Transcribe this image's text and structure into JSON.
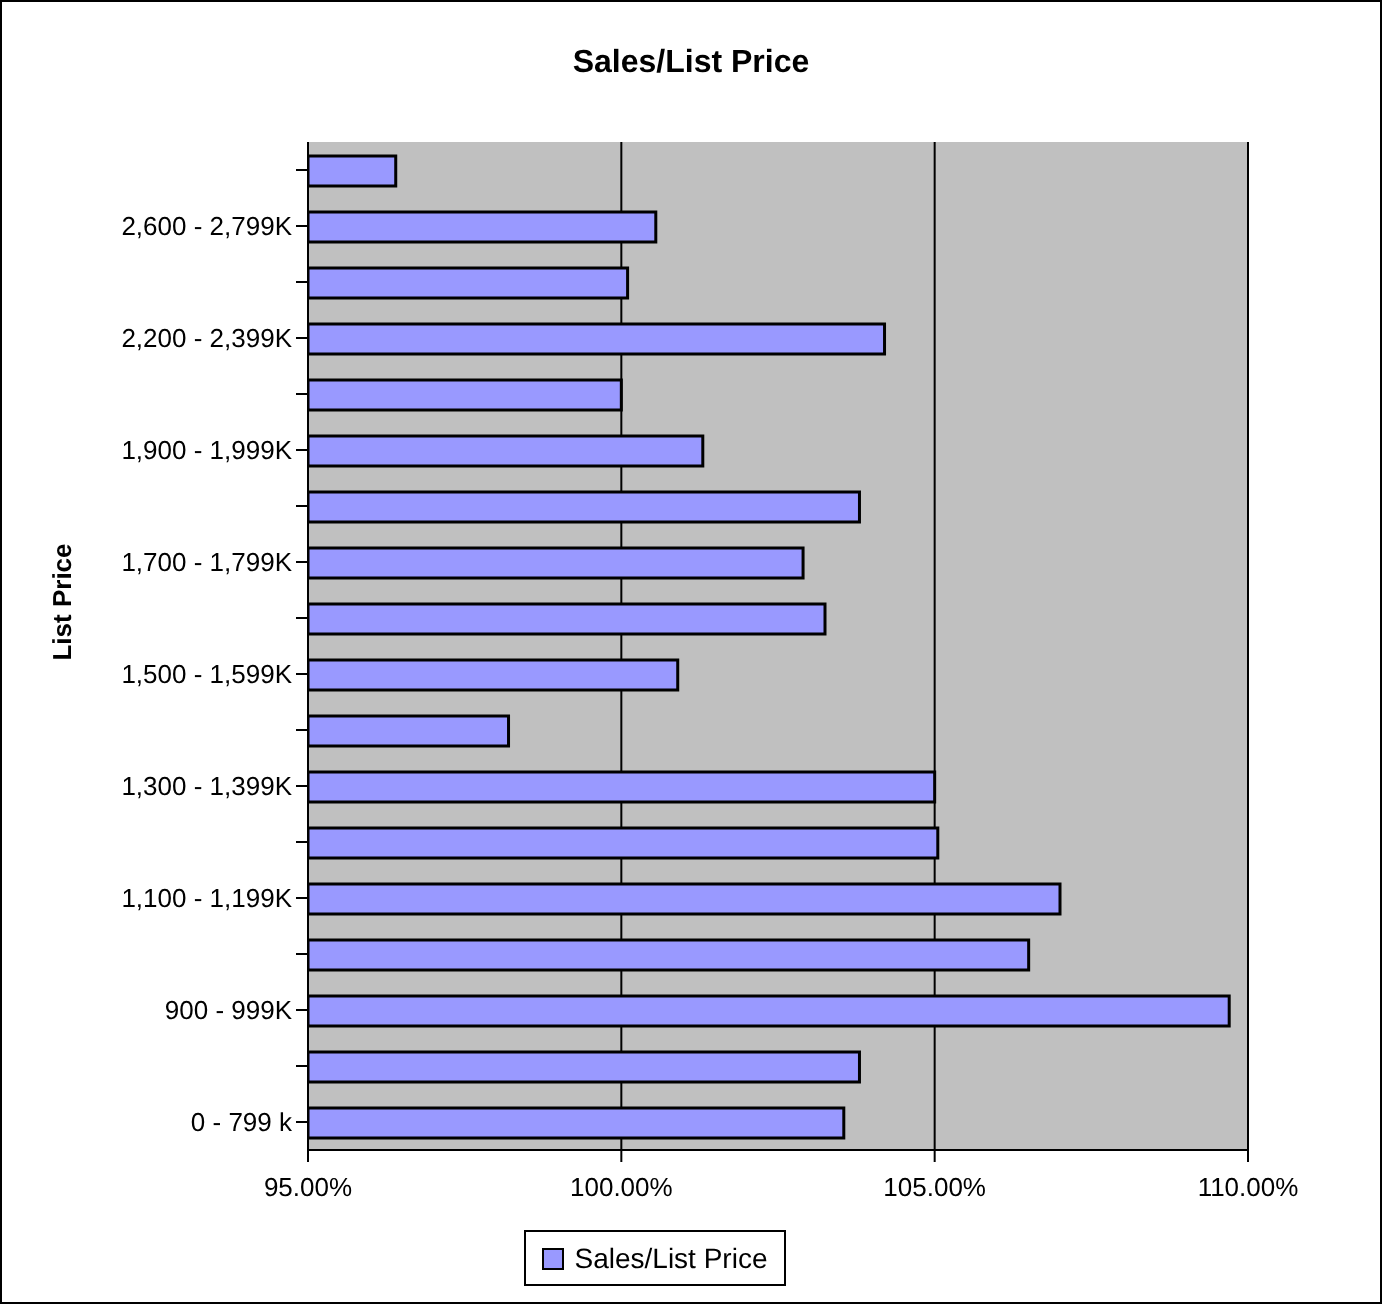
{
  "chart_data": {
    "type": "bar",
    "orientation": "horizontal",
    "title": "Sales/List Price",
    "ylabel": "List Price",
    "categories": [
      null,
      "2,600 - 2,799K",
      null,
      "2,200 - 2,399K",
      null,
      "1,900 - 1,999K",
      null,
      "1,700 - 1,799K",
      null,
      "1,500 - 1,599K",
      null,
      "1,300 - 1,399K",
      null,
      "1,100 - 1,199K",
      null,
      "900 - 999K",
      null,
      "0 - 799 k"
    ],
    "series": [
      {
        "name": "Sales/List Price",
        "color": "#9999ff",
        "values": [
          96.4,
          100.55,
          100.1,
          104.2,
          100.0,
          101.3,
          103.8,
          102.9,
          103.25,
          100.9,
          98.2,
          105.0,
          105.05,
          107.0,
          106.5,
          109.7,
          103.8,
          103.55
        ]
      }
    ],
    "xlim": [
      95,
      110
    ],
    "xticks": [
      {
        "value": 95,
        "label": "95.00%"
      },
      {
        "value": 100,
        "label": "100.00%"
      },
      {
        "value": 105,
        "label": "105.00%"
      },
      {
        "value": 110,
        "label": "110.00%"
      }
    ],
    "grid": "x",
    "legend": "bottom"
  }
}
